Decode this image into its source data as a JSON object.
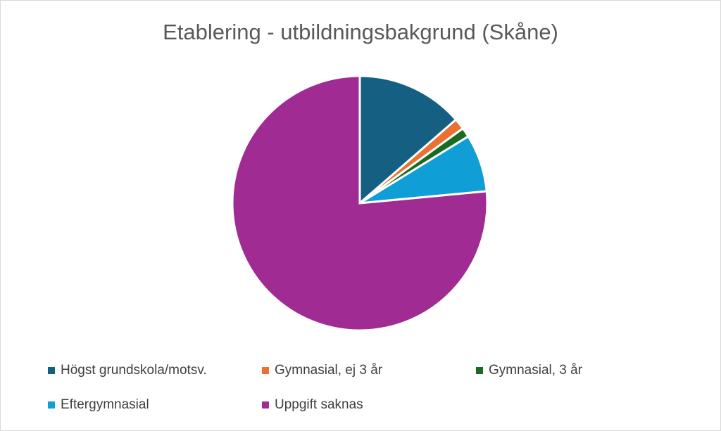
{
  "chart_data": {
    "type": "pie",
    "title": "Etablering - utbildningsbakgrund (Skåne)",
    "categories": [
      "Högst grundskola/motsv.",
      "Gymnasial, ej 3 år",
      "Gymnasial, 3 år",
      "Eftergymnasial",
      "Uppgift saknas"
    ],
    "values": [
      13.6,
      1.4,
      1.2,
      7.3,
      76.5
    ],
    "colors": [
      "#156082",
      "#E97132",
      "#196B24",
      "#0F9ED5",
      "#A02B93"
    ],
    "legend": "bottom"
  }
}
